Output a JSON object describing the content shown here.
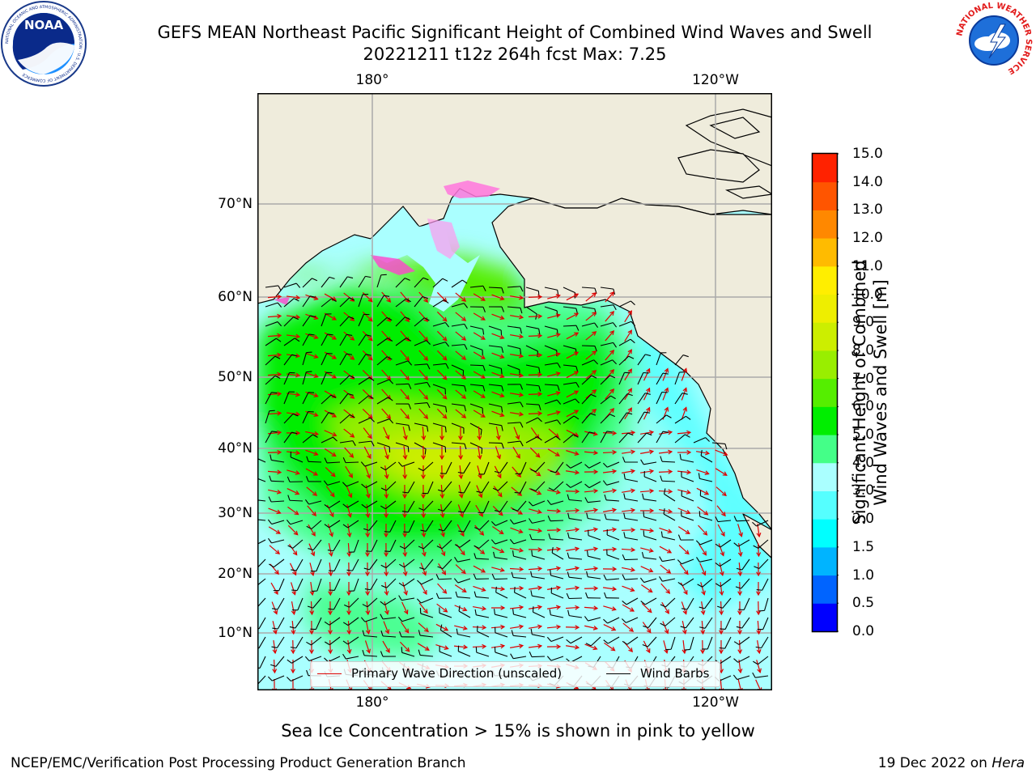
{
  "header": {
    "title_line1": "GEFS MEAN Northeast Pacific Significant Height of Combined Wind Waves and Swell",
    "title_line2": "20221211 t12z 264h fcst   Max: 7.25"
  },
  "logos": {
    "noaa": {
      "text": "NOAA",
      "ring_text": "NATIONAL OCEANIC AND ATMOSPHERIC ADMINISTRATION · U.S. DEPARTMENT OF COMMERCE",
      "icon": "noaa-logo"
    },
    "nws": {
      "ring_text": "NATIONAL WEATHER SERVICE",
      "icon": "nws-logo"
    }
  },
  "map": {
    "lon_ticks": [
      "180°",
      "120°W"
    ],
    "lat_ticks": [
      "70°N",
      "60°N",
      "50°N",
      "40°N",
      "30°N",
      "20°N",
      "10°N"
    ],
    "land_color": "#efecdc",
    "ice_colors": [
      "#ff44cc",
      "#ff99cc",
      "#ffcc44"
    ],
    "legend": {
      "wave_label": "Primary Wave Direction (unscaled)",
      "wind_label": "Wind Barbs",
      "wave_color": "#dd0000",
      "wind_color": "#000000"
    }
  },
  "colorbar": {
    "title_line1": "Significant Height of Combined",
    "title_line2": "Wind Waves and Swell [m]",
    "levels": [
      "0.0",
      "0.5",
      "1.0",
      "1.5",
      "2.0",
      "3.0",
      "4.0",
      "5.0",
      "6.0",
      "7.0",
      "8.0",
      "9.0",
      "10.0",
      "11.0",
      "12.0",
      "13.0",
      "14.0",
      "15.0"
    ],
    "colors": [
      "#0000ff",
      "#0064ff",
      "#00b4ff",
      "#00ffff",
      "#55ffff",
      "#aaffff",
      "#44ff88",
      "#00ee00",
      "#55ee00",
      "#99ee00",
      "#ccee00",
      "#eeee00",
      "#ffee00",
      "#ffbb00",
      "#ff8800",
      "#ff5500",
      "#ff2200"
    ]
  },
  "chart_data": {
    "type": "heatmap",
    "title": "GEFS MEAN Northeast Pacific Significant Height of Combined Wind Waves and Swell",
    "subtitle": "20221211 t12z 264h fcst   Max: 7.25",
    "max_value": 7.25,
    "units": "m",
    "colorbar_range": [
      0.0,
      15.0
    ]
  },
  "footer": {
    "note": "Sea Ice Concentration > 15% is shown in pink to yellow",
    "credit": "NCEP/EMC/Verification Post Processing Product Generation Branch",
    "date": "19 Dec 2022 on ",
    "machine": "Hera"
  }
}
